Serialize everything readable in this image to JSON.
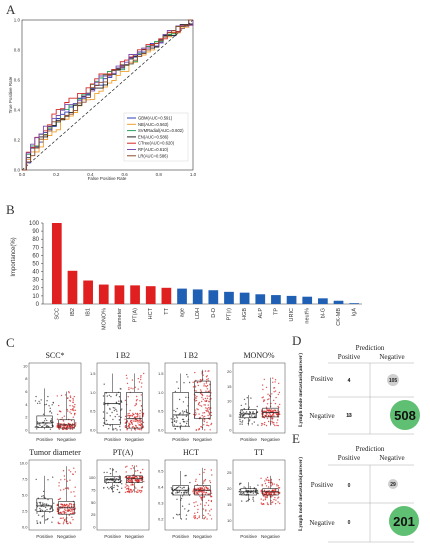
{
  "panels": {
    "a": "A",
    "b": "B",
    "c": "C",
    "d": "D",
    "e": "E"
  },
  "chart_data": [
    {
      "type": "line",
      "panel": "A",
      "xlabel": "False Positive Rate",
      "ylabel": "True Positive Rate",
      "xlim": [
        0,
        1
      ],
      "ylim": [
        0,
        1
      ],
      "ticks": [
        "0.0",
        "0.2",
        "0.4",
        "0.6",
        "0.8",
        "1.0"
      ],
      "legend_position": "bottom-right",
      "series": [
        {
          "name": "GBM(AUC=0.591)",
          "color": "#2b3fb8"
        },
        {
          "name": "NB(AUC=0.563)",
          "color": "#f0a030"
        },
        {
          "name": "SVMRadial(AUC=0.602)",
          "color": "#2aa05a"
        },
        {
          "name": "EN(AUC=0.586)",
          "color": "#222222"
        },
        {
          "name": "CTree(AUC=0.620)",
          "color": "#d62828"
        },
        {
          "name": "RF(AUC=0.610)",
          "color": "#7b4fb0"
        },
        {
          "name": "LR(AUC=0.586)",
          "color": "#8a4b2a"
        }
      ]
    },
    {
      "type": "bar",
      "panel": "B",
      "ylabel": "Importance(%)",
      "ylim": [
        0,
        100
      ],
      "yticks": [
        "0",
        "10",
        "20",
        "30",
        "40",
        "50",
        "60",
        "70",
        "80",
        "90",
        "100"
      ],
      "categories": [
        "SCC",
        "IB2",
        "IB1",
        "MONO%",
        "diameter",
        "PT(A)",
        "HCT",
        "TT",
        "age",
        "LDH",
        "D-D",
        "PT(r)",
        "HGB",
        "ALP",
        "TP",
        "URIC",
        "neut%",
        "bl-G",
        "CK-MB",
        "IgA"
      ],
      "values": [
        100,
        41,
        29,
        24,
        23,
        23,
        22,
        20,
        19,
        18,
        17,
        15,
        14,
        12,
        11,
        10,
        9,
        7,
        4,
        1
      ],
      "colors": [
        "#e02020",
        "#e02020",
        "#e02020",
        "#e02020",
        "#e02020",
        "#e02020",
        "#e02020",
        "#e02020",
        "#1f5fb4",
        "#1f5fb4",
        "#1f5fb4",
        "#1f5fb4",
        "#1f5fb4",
        "#1f5fb4",
        "#1f5fb4",
        "#1f5fb4",
        "#1f5fb4",
        "#1f5fb4",
        "#1f5fb4",
        "#1f5fb4"
      ]
    },
    {
      "type": "box",
      "panel": "C",
      "groups": [
        "Positive",
        "Negative"
      ],
      "colors": {
        "Positive": "#333333",
        "Negative": "#d42020"
      },
      "plots": [
        {
          "title": "SCC*",
          "yticks": [
            "0",
            "2",
            "4",
            "6",
            "8",
            "10"
          ],
          "ymax": 10,
          "pos": [
            0.1,
            0.4,
            1.1,
            2.2,
            6.5
          ],
          "neg": [
            0.1,
            0.3,
            0.8,
            1.6,
            6.0
          ]
        },
        {
          "title": "I B2",
          "yticks": [
            "0.0",
            "0.5",
            "1.0",
            "1.5"
          ],
          "ymax": 1.7,
          "pos": [
            0.0,
            0.15,
            0.7,
            1.0,
            1.5
          ],
          "neg": [
            0.0,
            0.05,
            0.3,
            1.0,
            1.5
          ]
        },
        {
          "title": "I B2",
          "yticks": [
            "0.0",
            "0.5",
            "1.0",
            "1.5"
          ],
          "ymax": 1.7,
          "pos": [
            0.0,
            0.1,
            0.4,
            1.0,
            1.5
          ],
          "neg": [
            0.0,
            0.3,
            1.0,
            1.3,
            1.6
          ]
        },
        {
          "title": "MONO%",
          "yticks": [
            "0",
            "5",
            "10",
            "15",
            "20"
          ],
          "ymax": 22,
          "pos": [
            1.5,
            4.2,
            5.5,
            7.0,
            12.0
          ],
          "neg": [
            1.5,
            4.5,
            6.0,
            7.5,
            18.0
          ]
        },
        {
          "title": "Tumor diameter",
          "yticks": [
            "0.0",
            "2.5",
            "5.0",
            "7.5",
            "10.0"
          ],
          "ymax": 10,
          "pos": [
            0.5,
            2.4,
            3.3,
            4.4,
            8.0
          ],
          "neg": [
            0.5,
            2.0,
            3.0,
            4.0,
            9.5
          ]
        },
        {
          "title": "PT(A)",
          "yticks": [
            "0",
            "25",
            "50",
            "75",
            "100"
          ],
          "ymax": 130,
          "pos": [
            70,
            90,
            97,
            103,
            120
          ],
          "neg": [
            70,
            90,
            98,
            104,
            125
          ]
        },
        {
          "title": "HCT",
          "yticks": [
            "0.2",
            "0.3",
            "0.4",
            "0.5"
          ],
          "ymax": 0.55,
          "ymin": 0.15,
          "pos": [
            0.2,
            0.35,
            0.38,
            0.41,
            0.5
          ],
          "neg": [
            0.2,
            0.35,
            0.38,
            0.41,
            0.52
          ]
        },
        {
          "title": "TT",
          "yticks": [
            "10",
            "15",
            "20",
            "25"
          ],
          "ymax": 28,
          "ymin": 8,
          "pos": [
            16,
            18,
            19,
            20,
            22
          ],
          "neg": [
            15,
            18,
            19,
            20,
            24
          ]
        }
      ]
    }
  ],
  "confusion_d": {
    "label": "D",
    "ylabel": "Lymph node metastasis(answer)",
    "prediction": "Prediction",
    "col_positive": "Positive",
    "col_negative": "Negative",
    "row_positive": "Positive",
    "row_negative": "Negative",
    "tp": "4",
    "fn": "105",
    "fp": "13",
    "tn": "508"
  },
  "confusion_e": {
    "label": "E",
    "ylabel": "Lymph node metastasis(answer)",
    "prediction": "Prediction",
    "col_positive": "Positive",
    "col_negative": "Negative",
    "row_positive": "Positive",
    "row_negative": "Negative",
    "tp": "0",
    "fn": "29",
    "fp": "0",
    "tn": "201"
  }
}
